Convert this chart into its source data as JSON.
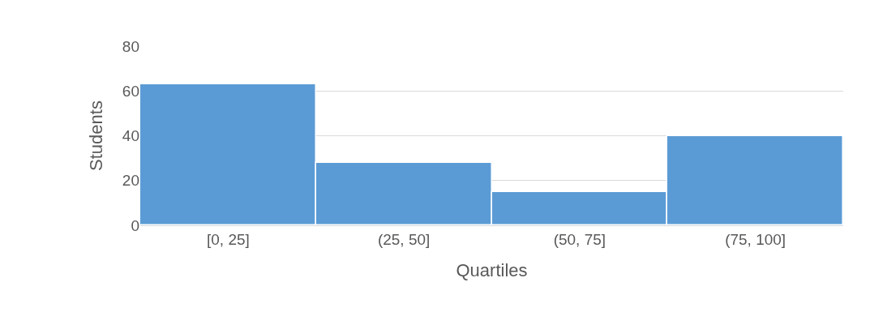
{
  "chart_data": {
    "type": "bar",
    "xlabel": "Quartiles",
    "ylabel": "Students",
    "categories": [
      "[0, 25]",
      "(25, 50]",
      "(50, 75]",
      "(75, 100]"
    ],
    "values": [
      63,
      28,
      15,
      40
    ],
    "color": "#5b9bd5",
    "ylim": [
      0,
      80
    ],
    "yticks": [
      0,
      20,
      40,
      60,
      80
    ],
    "grid": "y",
    "legend": false
  }
}
